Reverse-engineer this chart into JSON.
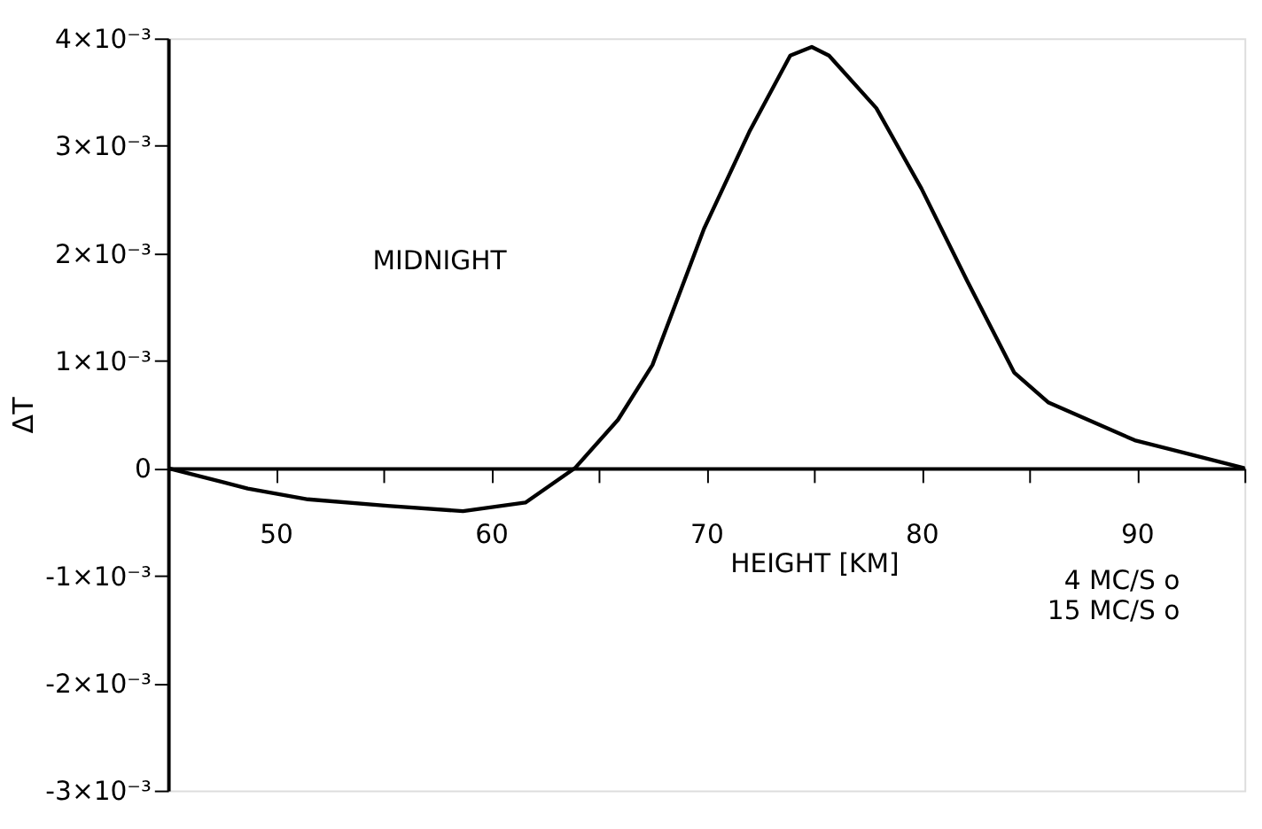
{
  "chart_data": {
    "type": "line",
    "xlabel": "HEIGHT [KM]",
    "ylabel": "ΔT",
    "x": [
      45,
      48.7,
      51.5,
      55.2,
      58.7,
      61.6,
      63.9,
      65.9,
      67.5,
      69.9,
      72.0,
      73.9,
      74.9,
      75.7,
      77.9,
      80.0,
      82.1,
      84.3,
      85.9,
      89.9,
      95
    ],
    "series": [
      {
        "color": "#000000",
        "values": [
          0,
          -0.00019,
          -0.00029,
          -0.00035,
          -0.0004,
          -0.00032,
          0,
          0.00045,
          0.00096,
          0.00223,
          0.00313,
          0.00384,
          0.00392,
          0.00384,
          0.00335,
          0.0026,
          0.00175,
          0.00089,
          0.00061,
          0.00026,
          0
        ]
      }
    ],
    "xlim": [
      45,
      95
    ],
    "xticks": [
      50,
      {
        "value": 55,
        "label": null
      },
      60,
      {
        "value": 65,
        "label": null
      },
      70,
      {
        "value": 75,
        "label": null
      },
      80,
      {
        "value": 85,
        "label": null
      },
      90,
      {
        "value": 95,
        "label": null
      }
    ],
    "ylim": [
      -0.003,
      0.004
    ],
    "yticks": [
      {
        "value": -0.003,
        "label": "-3×10⁻³"
      },
      {
        "value": -0.002,
        "label": "-2×10⁻³"
      },
      {
        "value": -0.001,
        "label": "-1×10⁻³"
      },
      0,
      {
        "value": 0.001,
        "label": "1×10⁻³"
      },
      {
        "value": 0.002,
        "label": "2×10⁻³"
      },
      {
        "value": 0.003,
        "label": "3×10⁻³"
      },
      {
        "value": 0.004,
        "label": "4×10⁻³"
      }
    ],
    "annotations": [
      "MIDNIGHT",
      "4 MC/S  o",
      "15 MC/S  o"
    ],
    "grid": false,
    "marker": "none",
    "line_style": "solid"
  }
}
